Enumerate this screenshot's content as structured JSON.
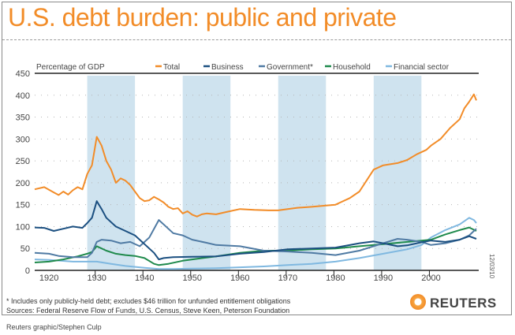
{
  "title": "U.S. debt burden: public and private",
  "footnote": "* Includes only publicly-held debt; excludes $46 trillion for unfunded entitlement obligations",
  "sources": "Sources: Federal Reserve Flow of Funds, U.S. Census, Steve Keen, Peterson Foundation",
  "credit": "Reuters graphic/Stephen Culp",
  "date_stamp": "12/03/10",
  "brand": "REUTERS",
  "chart_data": {
    "type": "line",
    "title": "U.S. debt burden: public and private",
    "ylabel": "Percentage of GDP",
    "xlabel": "",
    "ylim": [
      0,
      450
    ],
    "xlim": [
      1917,
      2010
    ],
    "yticks": [
      0,
      50,
      100,
      150,
      200,
      250,
      300,
      350,
      400,
      450
    ],
    "xticks": [
      1920,
      1930,
      1940,
      1950,
      1960,
      1970,
      1980,
      1990,
      2000
    ],
    "grid": true,
    "legend_position": "top",
    "shaded_periods": [
      [
        1928,
        1938
      ],
      [
        1948,
        1958
      ],
      [
        1968,
        1978
      ],
      [
        1988,
        1998
      ]
    ],
    "series": [
      {
        "name": "Total",
        "color": "#f28c28",
        "x": [
          1917,
          1919,
          1921,
          1922,
          1923,
          1924,
          1925,
          1926,
          1927,
          1928,
          1929,
          1930,
          1931,
          1932,
          1933,
          1934,
          1935,
          1936,
          1937,
          1938,
          1939,
          1940,
          1941,
          1942,
          1943,
          1944,
          1945,
          1946,
          1947,
          1948,
          1949,
          1950,
          1951,
          1952,
          1953,
          1955,
          1957,
          1960,
          1963,
          1966,
          1968,
          1970,
          1972,
          1975,
          1978,
          1980,
          1981,
          1983,
          1985,
          1988,
          1990,
          1993,
          1995,
          1997,
          1999,
          2000,
          2002,
          2004,
          2006,
          2007,
          2008,
          2009,
          2009.5
        ],
        "y": [
          185,
          190,
          178,
          172,
          180,
          173,
          183,
          190,
          185,
          220,
          240,
          305,
          285,
          250,
          230,
          200,
          210,
          205,
          195,
          180,
          165,
          158,
          160,
          168,
          162,
          155,
          145,
          140,
          142,
          130,
          135,
          127,
          123,
          128,
          130,
          128,
          133,
          140,
          138,
          137,
          137,
          140,
          143,
          145,
          148,
          150,
          155,
          165,
          180,
          230,
          240,
          245,
          252,
          265,
          275,
          285,
          300,
          325,
          345,
          370,
          385,
          402,
          388
        ]
      },
      {
        "name": "Business",
        "color": "#1b4f80",
        "x": [
          1917,
          1919,
          1921,
          1923,
          1925,
          1927,
          1928,
          1929,
          1930,
          1931,
          1932,
          1934,
          1936,
          1938,
          1940,
          1942,
          1943,
          1944,
          1946,
          1950,
          1955,
          1960,
          1965,
          1970,
          1975,
          1980,
          1985,
          1988,
          1990,
          1993,
          1995,
          1998,
          2000,
          2003,
          2006,
          2008,
          2009.5
        ],
        "y": [
          98,
          97,
          90,
          95,
          100,
          97,
          108,
          120,
          158,
          140,
          120,
          100,
          90,
          80,
          60,
          40,
          25,
          28,
          30,
          31,
          32,
          38,
          42,
          48,
          50,
          52,
          62,
          66,
          62,
          55,
          57,
          64,
          68,
          65,
          70,
          78,
          72
        ]
      },
      {
        "name": "Government*",
        "color": "#4f7aa3",
        "x": [
          1917,
          1920,
          1922,
          1925,
          1928,
          1929,
          1930,
          1931,
          1933,
          1935,
          1937,
          1939,
          1941,
          1943,
          1944,
          1946,
          1948,
          1950,
          1953,
          1955,
          1960,
          1965,
          1970,
          1975,
          1980,
          1985,
          1990,
          1993,
          1995,
          1998,
          2000,
          2003,
          2006,
          2008,
          2009.5
        ],
        "y": [
          40,
          38,
          33,
          30,
          30,
          40,
          65,
          70,
          68,
          62,
          65,
          55,
          75,
          115,
          105,
          85,
          80,
          70,
          63,
          58,
          55,
          45,
          43,
          40,
          35,
          45,
          62,
          72,
          70,
          65,
          58,
          62,
          70,
          80,
          95
        ]
      },
      {
        "name": "Household",
        "color": "#1f8a4c",
        "x": [
          1917,
          1920,
          1923,
          1926,
          1928,
          1929,
          1930,
          1932,
          1934,
          1936,
          1938,
          1940,
          1942,
          1943,
          1945,
          1948,
          1950,
          1955,
          1960,
          1965,
          1970,
          1975,
          1980,
          1985,
          1990,
          1995,
          1998,
          2000,
          2003,
          2006,
          2008,
          2009.5
        ],
        "y": [
          18,
          20,
          25,
          32,
          38,
          42,
          55,
          45,
          38,
          35,
          33,
          28,
          15,
          12,
          15,
          22,
          25,
          32,
          40,
          45,
          45,
          48,
          50,
          55,
          60,
          65,
          68,
          70,
          82,
          92,
          98,
          90
        ]
      },
      {
        "name": "Financial sector",
        "color": "#7fb8e0",
        "x": [
          1917,
          1920,
          1925,
          1930,
          1933,
          1936,
          1940,
          1943,
          1946,
          1950,
          1955,
          1960,
          1965,
          1970,
          1975,
          1980,
          1985,
          1990,
          1995,
          1998,
          2000,
          2003,
          2006,
          2008,
          2009,
          2009.5
        ],
        "y": [
          25,
          24,
          20,
          20,
          15,
          10,
          6,
          3,
          3,
          4,
          5,
          7,
          9,
          12,
          15,
          20,
          28,
          38,
          48,
          58,
          75,
          92,
          105,
          120,
          115,
          108
        ]
      }
    ]
  }
}
